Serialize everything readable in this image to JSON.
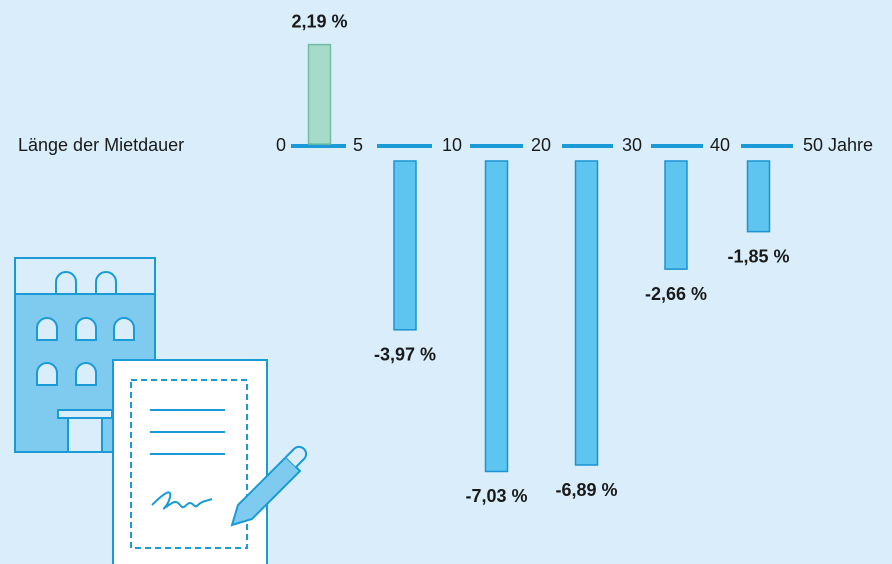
{
  "chart_data": {
    "type": "bar",
    "xlabel": "Länge der Mietdauer",
    "boundaries": [
      "0",
      "5",
      "10",
      "20",
      "30",
      "40",
      "50 Jahre"
    ],
    "values": [
      2.19,
      -3.97,
      -7.03,
      -6.89,
      -2.66,
      -1.85
    ],
    "value_labels": [
      "2,19 %",
      "-3,97 %",
      "-7,03 %",
      "-6,89 %",
      "-2,66 %",
      "-1,85 %"
    ],
    "colors": [
      "#a6dac9",
      "#5ec4f0",
      "#5ec4f0",
      "#5ec4f0",
      "#5ec4f0",
      "#5ec4f0"
    ],
    "edge_colors": [
      "#72bca5",
      "#1b93d2",
      "#1b93d2",
      "#1b93d2",
      "#1b93d2",
      "#1b93d2"
    ],
    "axis_color": "#1a9ad6"
  }
}
